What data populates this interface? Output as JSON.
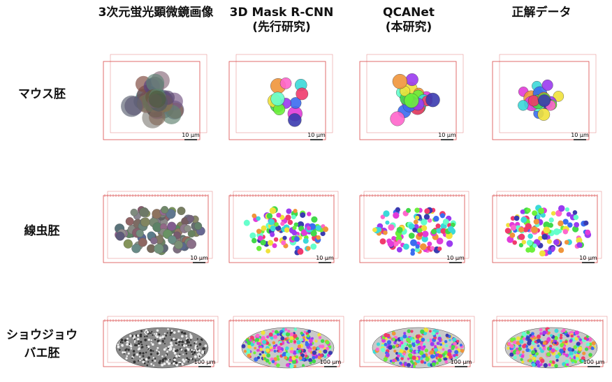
{
  "columns": [
    {
      "line1": "3次元蛍光顕微鏡画像",
      "line2": ""
    },
    {
      "line1": "3D Mask R-CNN",
      "line2": "(先行研究)"
    },
    {
      "line1": "QCANet",
      "line2": "(本研究)"
    },
    {
      "line1": "正解データ",
      "line2": ""
    }
  ],
  "rows": [
    {
      "line1": "マウス胚",
      "line2": "",
      "scale_bar": "10 μm"
    },
    {
      "line1": "線虫胚",
      "line2": "",
      "scale_bar": "10 μm"
    },
    {
      "line1": "ショウジョウ",
      "line2": "バエ胚",
      "scale_bar": "100 μm"
    }
  ],
  "colors": {
    "box": "#d94a4a",
    "palette": [
      "#e23bd9",
      "#3b6cf0",
      "#42d94a",
      "#f0e23b",
      "#3bd9d9",
      "#f03b6c",
      "#9b3bf0",
      "#f0953b",
      "#6cf03b",
      "#3b3bb0",
      "#ff66cc",
      "#66ffcc"
    ]
  }
}
